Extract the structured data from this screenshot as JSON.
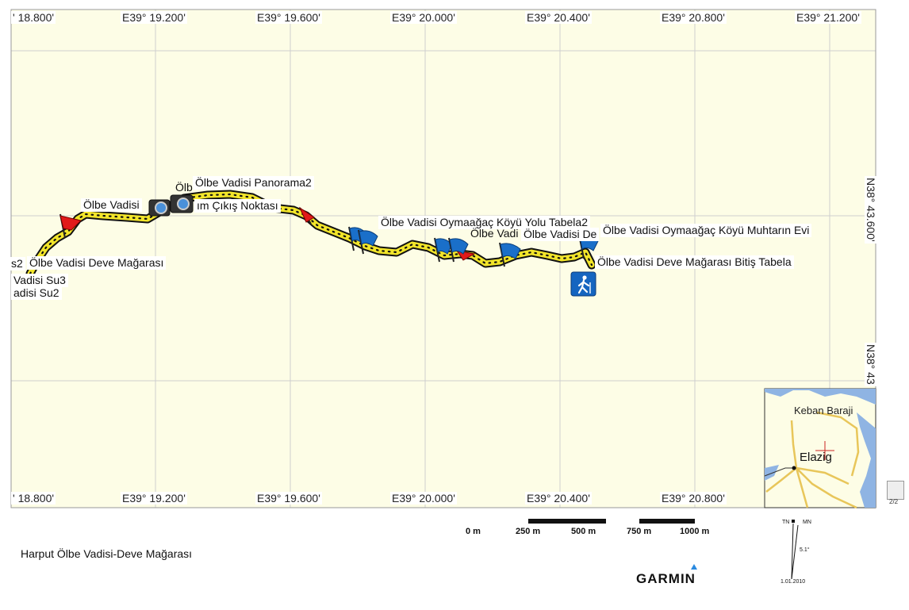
{
  "map": {
    "title": "Harput Ölbe Vadisi-Deve Mağarası",
    "brand": "GARMIN",
    "colors": {
      "background": "#fdfde6",
      "grid": "#cfcfcf",
      "track_fill": "#f2e52a",
      "track_border": "#111111",
      "flag_red": "#e11a1a",
      "flag_blue": "#1a6fc9",
      "water": "#8fb4e3"
    },
    "top_axis_labels": [
      "' 18.800'",
      "E39° 19.200'",
      "E39° 19.600'",
      "E39° 20.000'",
      "E39° 20.400'",
      "E39° 20.800'",
      "E39° 21.200'"
    ],
    "bottom_axis_labels": [
      "' 18.800'",
      "E39° 19.200'",
      "E39° 19.600'",
      "E39° 20.000'",
      "E39° 20.400'",
      "E39° 20.800'"
    ],
    "right_axis_labels": [
      "N38° 43.600'",
      "N38° 43"
    ],
    "waypoints": [
      {
        "label": "Ölbe Vadisi Panorama2",
        "icon": "camera-icon"
      },
      {
        "label": "Ölb",
        "icon": "camera-icon"
      },
      {
        "label": "Ölbe Vadisi",
        "icon": "camera-icon"
      },
      {
        "label": "ım Çıkış Noktası",
        "icon": "red-flag-icon"
      },
      {
        "label": "s2",
        "icon": ""
      },
      {
        "label": "Ölbe Vadisi Deve Mağarası",
        "icon": "red-flag-icon"
      },
      {
        "label": "Vadisi Su3",
        "icon": ""
      },
      {
        "label": "adisi Su2",
        "icon": ""
      },
      {
        "label": "Ölbe Vadisi Oymaağaç Köyü Yolu Tabela2",
        "icon": "blue-flag-icon"
      },
      {
        "label": "Ölbe Vadi",
        "icon": "blue-flag-icon"
      },
      {
        "label": "Ölbe Vadisi De",
        "icon": "blue-flag-icon"
      },
      {
        "label": "Ölbe Vadisi Oymaağaç Köyü Muhtarın Evi",
        "icon": "blue-flag-icon"
      },
      {
        "label": "Ölbe Vadisi Deve Mağarası Bitiş Tabela",
        "icon": "hiker-icon"
      }
    ],
    "scale": {
      "labels_a": [
        "0 m",
        "250 m",
        "500 m"
      ],
      "labels_b": [
        "750 m",
        "1000 m"
      ]
    },
    "north": {
      "tn": "TN",
      "mn": "MN",
      "declination": "5.1°",
      "date": "1.01.2010"
    },
    "inset": {
      "lake": "Keban Baraji",
      "city": "Elazig"
    },
    "page": "2/2"
  }
}
